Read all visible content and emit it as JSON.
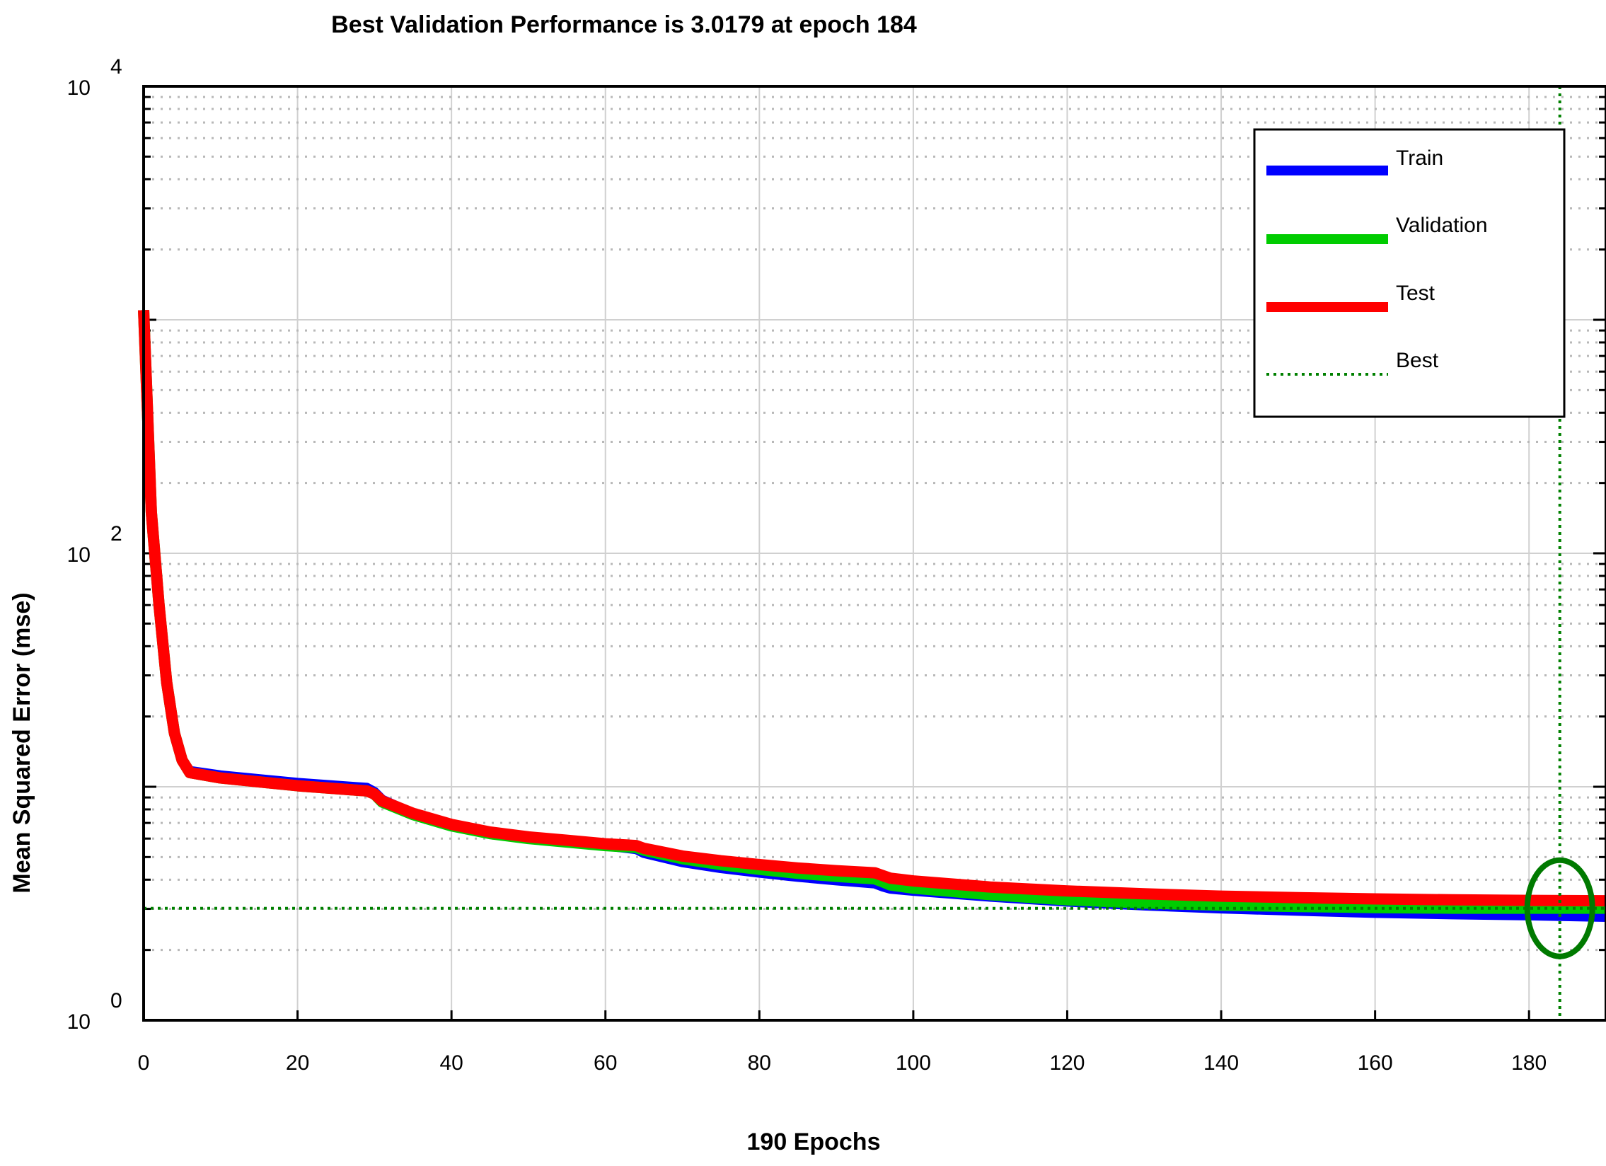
{
  "chart_data": {
    "type": "line",
    "title": "Best Validation Performance is 3.0179 at epoch 184",
    "xlabel": "190 Epochs",
    "ylabel": "Mean Squared Error  (mse)",
    "yscale": "log",
    "xlim": [
      0,
      190
    ],
    "ylim": [
      1,
      10000
    ],
    "x_ticks": [
      "0",
      "20",
      "40",
      "60",
      "80",
      "100",
      "120",
      "140",
      "160",
      "180"
    ],
    "y_ticks": [
      {
        "base": "10",
        "exp": "0",
        "value": 1
      },
      {
        "base": "10",
        "exp": "2",
        "value": 100
      },
      {
        "base": "10",
        "exp": "4",
        "value": 10000
      }
    ],
    "grid": true,
    "legend_position": "top-right",
    "legend": [
      "Train",
      "Validation",
      "Test",
      "Best"
    ],
    "best": {
      "epoch": 184,
      "value": 3.0179
    },
    "series": [
      {
        "name": "Train",
        "color": "#0000ff",
        "x": [
          0,
          1,
          2,
          3,
          4,
          5,
          6,
          10,
          20,
          29,
          30,
          31,
          35,
          40,
          45,
          50,
          55,
          60,
          64,
          65,
          70,
          75,
          80,
          85,
          90,
          95,
          96,
          97,
          100,
          110,
          120,
          130,
          140,
          150,
          160,
          170,
          180,
          190
        ],
        "y": [
          1100,
          150,
          60,
          28,
          17,
          13,
          11.7,
          11.2,
          10.4,
          9.9,
          9.5,
          8.8,
          7.7,
          6.8,
          6.3,
          6.0,
          5.8,
          5.6,
          5.4,
          5.2,
          4.75,
          4.48,
          4.28,
          4.11,
          3.97,
          3.85,
          3.74,
          3.66,
          3.58,
          3.38,
          3.22,
          3.1,
          3.01,
          2.94,
          2.88,
          2.84,
          2.81,
          2.77
        ]
      },
      {
        "name": "Validation",
        "color": "#00cc00",
        "x": [
          0,
          1,
          2,
          3,
          4,
          5,
          6,
          10,
          20,
          29,
          30,
          31,
          35,
          40,
          45,
          50,
          55,
          60,
          64,
          65,
          70,
          75,
          80,
          85,
          90,
          95,
          96,
          97,
          100,
          110,
          120,
          130,
          140,
          150,
          160,
          170,
          180,
          190
        ],
        "y": [
          1100,
          150,
          60,
          28,
          17,
          13,
          11.5,
          10.9,
          10.1,
          9.6,
          9.3,
          8.6,
          7.6,
          6.8,
          6.3,
          6.0,
          5.8,
          5.6,
          5.5,
          5.35,
          4.92,
          4.64,
          4.43,
          4.26,
          4.13,
          4.03,
          3.92,
          3.8,
          3.68,
          3.45,
          3.28,
          3.18,
          3.11,
          3.07,
          3.04,
          3.02,
          3.02,
          3.02
        ]
      },
      {
        "name": "Test",
        "color": "#ff0000",
        "x": [
          0,
          1,
          2,
          3,
          4,
          5,
          6,
          10,
          20,
          29,
          30,
          31,
          35,
          40,
          45,
          50,
          55,
          60,
          64,
          65,
          70,
          75,
          80,
          85,
          90,
          95,
          96,
          97,
          100,
          110,
          120,
          130,
          140,
          150,
          160,
          170,
          180,
          190
        ],
        "y": [
          1100,
          150,
          60,
          28,
          17,
          13,
          11.5,
          10.9,
          10.1,
          9.6,
          9.3,
          8.7,
          7.7,
          6.9,
          6.4,
          6.1,
          5.9,
          5.7,
          5.6,
          5.45,
          5.05,
          4.82,
          4.64,
          4.49,
          4.37,
          4.28,
          4.17,
          4.06,
          3.95,
          3.72,
          3.58,
          3.48,
          3.4,
          3.35,
          3.31,
          3.28,
          3.26,
          3.25
        ]
      }
    ]
  }
}
